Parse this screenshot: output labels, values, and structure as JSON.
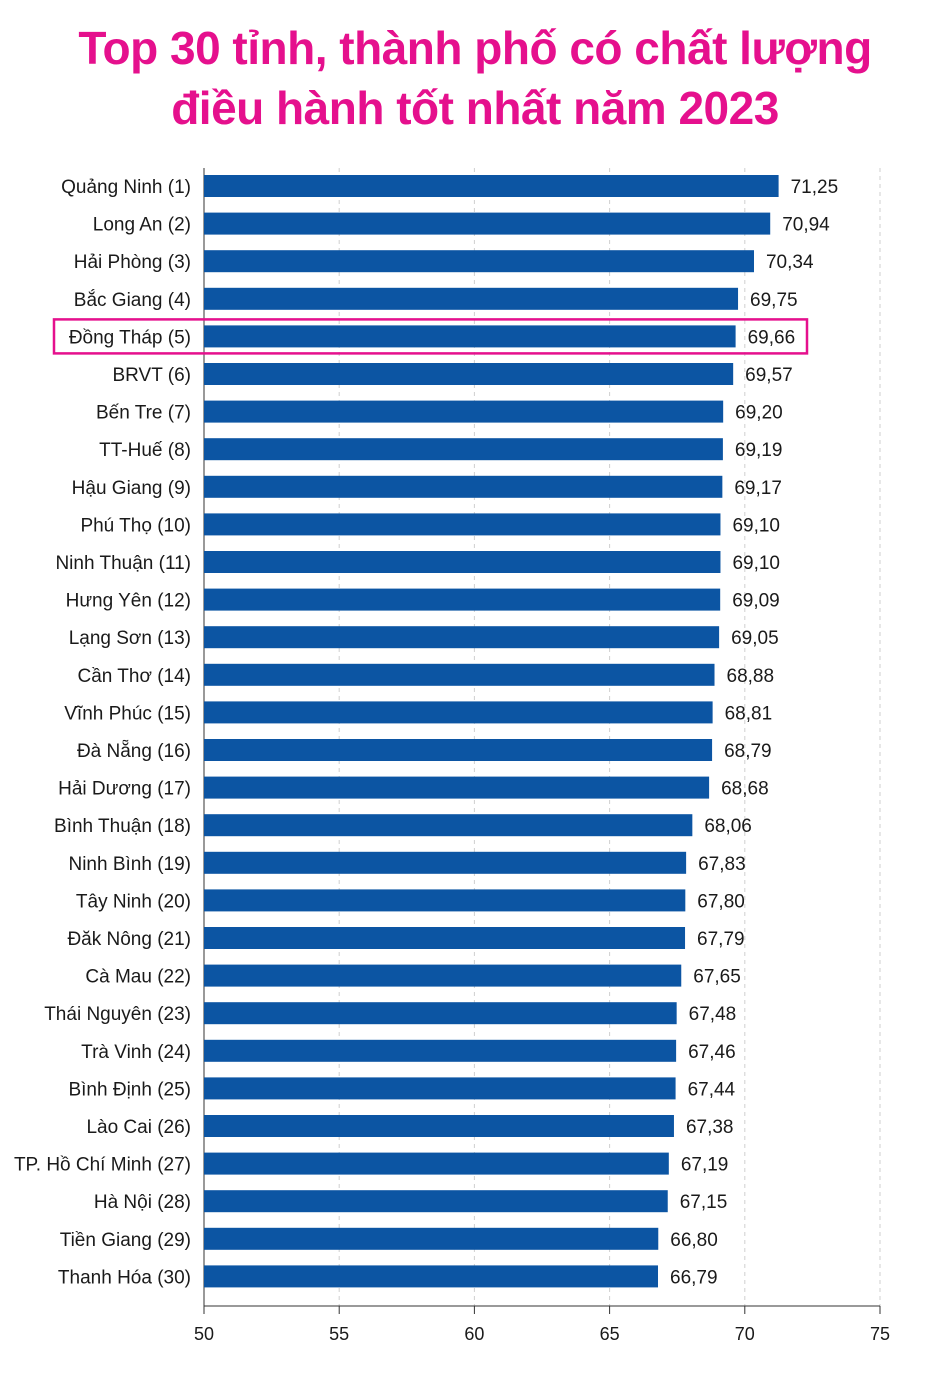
{
  "title_line1": "Top 30 tỉnh, thành phố có chất lượng",
  "title_line2": "điều hành tốt nhất năm 2023",
  "colors": {
    "title": "#e5108d",
    "bar": "#0c55a3",
    "highlight": "#e5108d",
    "grid": "#cfcfcf"
  },
  "chart_data": {
    "type": "bar",
    "orientation": "horizontal",
    "categories": [
      "Quảng Ninh (1)",
      "Long An (2)",
      "Hải Phòng (3)",
      "Bắc Giang (4)",
      "Đồng Tháp (5)",
      "BRVT (6)",
      "Bến Tre (7)",
      "TT-Huế (8)",
      "Hậu Giang (9)",
      "Phú Thọ (10)",
      "Ninh Thuận (11)",
      "Hưng Yên (12)",
      "Lạng Sơn (13)",
      "Cần Thơ (14)",
      "Vĩnh Phúc (15)",
      "Đà Nẵng (16)",
      "Hải Dương (17)",
      "Bình Thuận (18)",
      "Ninh Bình (19)",
      "Tây Ninh (20)",
      "Đăk Nông (21)",
      "Cà Mau (22)",
      "Thái Nguyên (23)",
      "Trà Vinh (24)",
      "Bình Định (25)",
      "Lào Cai (26)",
      "TP. Hồ Chí Minh (27)",
      "Hà Nội (28)",
      "Tiền Giang (29)",
      "Thanh Hóa (30)"
    ],
    "values": [
      71.25,
      70.94,
      70.34,
      69.75,
      69.66,
      69.57,
      69.2,
      69.19,
      69.17,
      69.1,
      69.1,
      69.09,
      69.05,
      68.88,
      68.81,
      68.79,
      68.68,
      68.06,
      67.83,
      67.8,
      67.79,
      67.65,
      67.48,
      67.46,
      67.44,
      67.38,
      67.19,
      67.15,
      66.8,
      66.79
    ],
    "value_labels": [
      "71,25",
      "70,94",
      "70,34",
      "69,75",
      "69,66",
      "69,57",
      "69,20",
      "69,19",
      "69,17",
      "69,10",
      "69,10",
      "69,09",
      "69,05",
      "68,88",
      "68,81",
      "68,79",
      "68,68",
      "68,06",
      "67,83",
      "67,80",
      "67,79",
      "67,65",
      "67,48",
      "67,46",
      "67,44",
      "67,38",
      "67,19",
      "67,15",
      "66,80",
      "66,79"
    ],
    "xlim": [
      50,
      75
    ],
    "xticks": [
      50,
      55,
      60,
      65,
      70,
      75
    ],
    "xtick_labels": [
      "50",
      "55",
      "60",
      "65",
      "70",
      "75"
    ],
    "grid": true,
    "highlighted_category": "Đồng Tháp (5)"
  }
}
